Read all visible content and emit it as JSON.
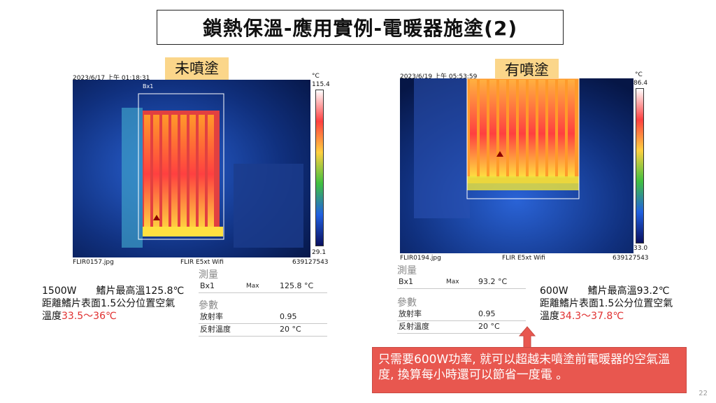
{
  "slide_title": "鎖熱保溫-應用實例-電暖器施塗(2)",
  "left": {
    "tag": "未噴塗",
    "timestamp": "2023/6/17 上午 01:18:31",
    "box_label": "Bx1",
    "unit": "°C",
    "scale_max": "115.4",
    "scale_min": "29.1",
    "filename": "FLIR0157.jpg",
    "camera": "FLIR E5xt Wifi",
    "serial": "639127543",
    "measure_header": "測量",
    "param_header": "參數",
    "rows": [
      {
        "name": "Bx1",
        "key": "Max",
        "value": "125.8 °C"
      },
      {
        "name": "放射率",
        "key": "",
        "value": "0.95"
      },
      {
        "name": "反射溫度",
        "key": "",
        "value": "20 °C"
      }
    ],
    "desc_line1": "1500W　　鰭片最高溫125.8℃",
    "desc_line2": "距離鰭片表面1.5公分位置空氣",
    "desc_prefix": "溫度",
    "desc_temp": "33.5～36℃"
  },
  "right": {
    "tag": "有噴塗",
    "timestamp": "2023/6/19 上午 05:53:59",
    "unit": "°C",
    "scale_max": "86.4",
    "scale_min": "33.0",
    "filename": "FLIR0194.jpg",
    "camera": "FLIR E5xt Wifi",
    "serial": "639127543",
    "measure_header": "測量",
    "param_header": "參數",
    "rows": [
      {
        "name": "Bx1",
        "key": "Max",
        "value": "93.2 °C"
      },
      {
        "name": "放射率",
        "key": "",
        "value": "0.95"
      },
      {
        "name": "反射溫度",
        "key": "",
        "value": "20 °C"
      }
    ],
    "desc_line1": "600W　　鰭片最高溫93.2℃",
    "desc_line2": "距離鰭片表面1.5公分位置空氣",
    "desc_prefix": "溫度",
    "desc_temp": "34.3～37.8℃"
  },
  "callout_text": "只需要600W功率, 就可以超越未噴塗前電暖器的空氣溫度, 換算每小時還可以節省一度電 。",
  "page_number": "22",
  "colors": {
    "callout": "#e8574f",
    "tag": "#fbd68a",
    "highlight": "#e03030"
  }
}
